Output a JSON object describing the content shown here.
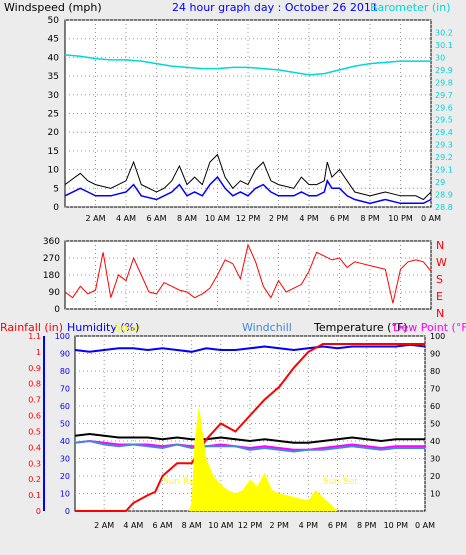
{
  "chart_data": [
    {
      "type": "line",
      "title": "24 hour graph day : October 26 2011",
      "left_axis_label": "Windspeed (mph)",
      "right_axis_label": "Barometer (in)",
      "x_ticks": [
        "2 AM",
        "4 AM",
        "6 AM",
        "8 AM",
        "10 AM",
        "12 PM",
        "2 PM",
        "4 PM",
        "6 PM",
        "8 PM",
        "10 PM",
        "0 AM"
      ],
      "x_range_hours": [
        0,
        24
      ],
      "ylim_left": [
        0,
        50
      ],
      "y_ticks_left": [
        "0",
        "5",
        "10",
        "15",
        "20",
        "25",
        "30",
        "35",
        "40",
        "45",
        "50"
      ],
      "ylim_right": [
        28.8,
        30.3
      ],
      "y_ticks_right": [
        "28.8",
        "28.9",
        "29",
        "29.1",
        "29.2",
        "29.3",
        "29.4",
        "29.5",
        "29.6",
        "29.7",
        "29.8",
        "29.9",
        "30",
        "30.1",
        "30.2"
      ],
      "grid": true,
      "colors": {
        "gust": "#000000",
        "windspeed": "#0000ff",
        "barometer": "#00d8d8"
      },
      "series": [
        {
          "key": "gust",
          "x": [
            0,
            1,
            1.5,
            2,
            3,
            4,
            4.5,
            5,
            6,
            6.5,
            7,
            7.5,
            8,
            8.5,
            9,
            9.5,
            10,
            10.5,
            11,
            11.5,
            12,
            12.5,
            13,
            13.5,
            14,
            15,
            15.5,
            16,
            16.5,
            17,
            17.2,
            17.5,
            18,
            18.5,
            19,
            20,
            21,
            22,
            23,
            23.5,
            24
          ],
          "values": [
            6,
            9,
            7,
            6,
            5,
            7,
            12,
            6,
            4,
            5,
            7,
            11,
            6,
            8,
            6,
            12,
            14,
            8,
            5,
            7,
            6,
            10,
            12,
            7,
            6,
            5,
            8,
            6,
            6,
            7,
            12,
            8,
            10,
            7,
            4,
            3,
            4,
            3,
            3,
            2,
            4
          ]
        },
        {
          "key": "windspeed",
          "x": [
            0,
            1,
            1.5,
            2,
            3,
            4,
            4.5,
            5,
            6,
            6.5,
            7,
            7.5,
            8,
            8.5,
            9,
            9.5,
            10,
            10.5,
            11,
            11.5,
            12,
            12.5,
            13,
            13.5,
            14,
            15,
            15.5,
            16,
            16.5,
            17,
            17.2,
            17.5,
            18,
            18.5,
            19,
            20,
            21,
            22,
            23,
            23.5,
            24
          ],
          "values": [
            3,
            5,
            4,
            3,
            3,
            4,
            6,
            3,
            2,
            3,
            4,
            6,
            3,
            4,
            3,
            6,
            8,
            5,
            3,
            4,
            3,
            5,
            6,
            4,
            3,
            3,
            4,
            3,
            3,
            4,
            7,
            5,
            5,
            3,
            2,
            1,
            2,
            1,
            1,
            1,
            2
          ]
        },
        {
          "key": "barometer",
          "x": [
            0,
            1,
            2,
            3,
            4,
            5,
            6,
            7,
            8,
            9,
            10,
            11,
            12,
            13,
            14,
            15,
            16,
            17,
            18,
            19,
            20,
            21,
            22,
            23,
            24
          ],
          "values": [
            30.02,
            30.01,
            29.99,
            29.98,
            29.98,
            29.97,
            29.95,
            29.93,
            29.92,
            29.91,
            29.91,
            29.92,
            29.92,
            29.91,
            29.9,
            29.88,
            29.86,
            29.87,
            29.9,
            29.93,
            29.95,
            29.96,
            29.97,
            29.97,
            29.97
          ]
        }
      ]
    },
    {
      "type": "line",
      "right_letters": [
        "N",
        "W",
        "S",
        "E",
        "N"
      ],
      "ylim": [
        0,
        360
      ],
      "y_ticks": [
        "0",
        "90",
        "180",
        "270",
        "360"
      ],
      "colors": {
        "direction": "#ff0000"
      },
      "series": [
        {
          "key": "direction",
          "x": [
            0,
            0.5,
            1,
            1.5,
            2,
            2.5,
            3,
            3.5,
            4,
            4.5,
            5,
            5.5,
            6,
            6.5,
            7,
            7.5,
            8,
            8.5,
            9,
            9.5,
            10,
            10.5,
            11,
            11.5,
            12,
            12.5,
            13,
            13.5,
            14,
            14.5,
            15,
            15.5,
            16,
            16.5,
            17,
            17.5,
            18,
            18.5,
            19,
            19.5,
            20,
            20.5,
            21,
            21.5,
            22,
            22.5,
            23,
            23.5,
            24
          ],
          "values": [
            90,
            60,
            120,
            80,
            100,
            300,
            60,
            180,
            150,
            270,
            180,
            90,
            80,
            140,
            120,
            100,
            90,
            60,
            80,
            110,
            180,
            260,
            240,
            160,
            340,
            250,
            120,
            60,
            150,
            90,
            110,
            130,
            200,
            300,
            280,
            260,
            270,
            220,
            250,
            240,
            230,
            220,
            210,
            30,
            210,
            250,
            260,
            250,
            200
          ]
        }
      ]
    },
    {
      "type": "line",
      "left_outer_label": "Rainfall (in)",
      "left_inner_label": "Humidity (%)",
      "solar_label": "Solar",
      "windchill_label": "Windchill",
      "temperature_label": "Temperature (°F)",
      "dewpoint_label": "Dew Point (°F)",
      "annotations": [
        "Sun Rise",
        "Sun Set"
      ],
      "ylim_rain": [
        0,
        1.1
      ],
      "y_ticks_rain": [
        "0",
        "0.1",
        "0.2",
        "0.3",
        "0.4",
        "0.5",
        "0.6",
        "0.7",
        "0.8",
        "0.9",
        "1",
        "1.1"
      ],
      "ylim_humidity": [
        0,
        100
      ],
      "y_ticks_humidity": [
        "0",
        "10",
        "20",
        "30",
        "40",
        "50",
        "60",
        "70",
        "80",
        "90",
        "100"
      ],
      "ylim_temp": [
        0,
        100
      ],
      "y_ticks_temp": [
        "10",
        "20",
        "30",
        "40",
        "50",
        "60",
        "70",
        "80",
        "90",
        "100"
      ],
      "colors": {
        "humidity": "#0000ff",
        "temperature": "#000000",
        "dewpoint": "#ff00ff",
        "windchill": "#4488dd",
        "rain": "#ff0000",
        "solar": "#ffff00"
      },
      "series": [
        {
          "key": "humidity",
          "x": [
            0,
            1,
            2,
            3,
            4,
            5,
            6,
            7,
            8,
            9,
            10,
            11,
            12,
            13,
            14,
            15,
            16,
            17,
            18,
            19,
            20,
            21,
            22,
            23,
            24
          ],
          "values": [
            92,
            91,
            92,
            93,
            93,
            92,
            93,
            92,
            91,
            93,
            92,
            92,
            93,
            94,
            93,
            92,
            93,
            94,
            93,
            94,
            94,
            94,
            94,
            95,
            94
          ]
        },
        {
          "key": "temperature",
          "x": [
            0,
            1,
            2,
            3,
            4,
            5,
            6,
            7,
            8,
            9,
            10,
            11,
            12,
            13,
            14,
            15,
            16,
            17,
            18,
            19,
            20,
            21,
            22,
            23,
            24
          ],
          "values": [
            43,
            44,
            43,
            42,
            42,
            42,
            41,
            42,
            41,
            41,
            42,
            41,
            40,
            41,
            40,
            39,
            39,
            40,
            41,
            42,
            41,
            40,
            41,
            41,
            41
          ]
        },
        {
          "key": "dewpoint",
          "x": [
            0,
            1,
            2,
            3,
            4,
            5,
            6,
            7,
            8,
            9,
            10,
            11,
            12,
            13,
            14,
            15,
            16,
            17,
            18,
            19,
            20,
            21,
            22,
            23,
            24
          ],
          "values": [
            39,
            40,
            39,
            38,
            38,
            38,
            37,
            38,
            37,
            37,
            38,
            37,
            36,
            37,
            36,
            35,
            35,
            36,
            37,
            38,
            37,
            36,
            37,
            37,
            37
          ]
        },
        {
          "key": "windchill",
          "x": [
            0,
            1,
            2,
            3,
            4,
            5,
            6,
            7,
            8,
            9,
            10,
            11,
            12,
            13,
            14,
            15,
            16,
            17,
            18,
            19,
            20,
            21,
            22,
            23,
            24
          ],
          "values": [
            39,
            40,
            38,
            37,
            38,
            37,
            36,
            38,
            36,
            37,
            37,
            37,
            35,
            36,
            35,
            34,
            35,
            35,
            36,
            37,
            36,
            35,
            36,
            36,
            36
          ]
        },
        {
          "key": "rain",
          "x": [
            0,
            3.5,
            4,
            5,
            5.5,
            6,
            7,
            8,
            9,
            10,
            11,
            12,
            13,
            14,
            15,
            16,
            17,
            18,
            19,
            20,
            21,
            22,
            23,
            24
          ],
          "values": [
            0,
            0,
            0.05,
            0.1,
            0.12,
            0.22,
            0.3,
            0.3,
            0.45,
            0.55,
            0.5,
            0.6,
            0.7,
            0.78,
            0.9,
            1.0,
            1.05,
            1.05,
            1.05,
            1.05,
            1.05,
            1.05,
            1.05,
            1.05
          ]
        },
        {
          "key": "solar",
          "x": [
            0,
            7.8,
            8,
            8.2,
            8.5,
            9,
            9.5,
            10,
            10.5,
            11,
            11.5,
            12,
            12.5,
            13,
            13.5,
            14,
            15,
            16,
            16.5,
            17,
            17.5,
            18,
            24
          ],
          "values": [
            0,
            0,
            5,
            40,
            60,
            30,
            20,
            15,
            12,
            10,
            12,
            18,
            14,
            22,
            12,
            10,
            8,
            6,
            12,
            8,
            4,
            0,
            0
          ]
        }
      ]
    }
  ]
}
